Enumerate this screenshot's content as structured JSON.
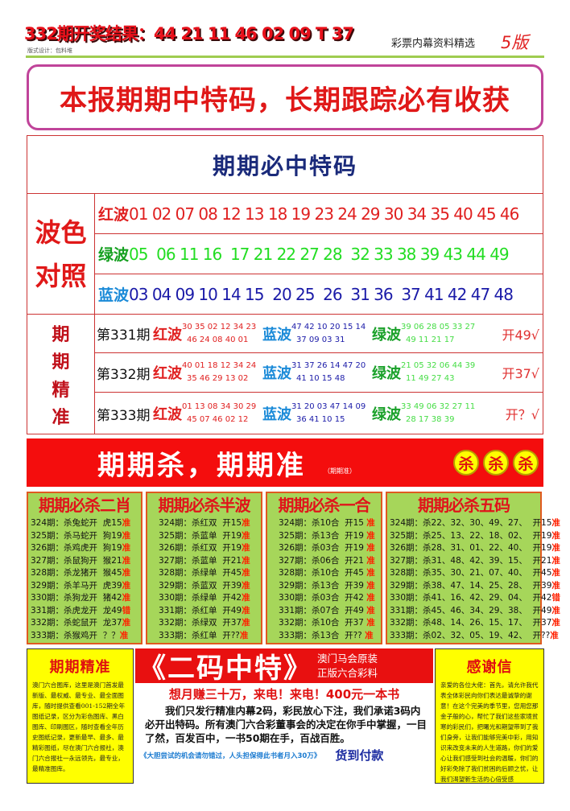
{
  "header": {
    "result": "332期开奖结果：44 21 11 46 02 09 T 37",
    "design": "版式设计：包料堆",
    "subtitle": "彩票内幕资料精选",
    "version": "5版"
  },
  "headline": "本报期期中特码，长期跟踪必有收获",
  "main_table": {
    "title": "期期必中特码",
    "wave_label": [
      "波色",
      "对照"
    ],
    "waves": [
      {
        "name": "红波",
        "numbers": "01 02 07 08 12 13 18 19 23 24 29 30 34 35 40 45 46",
        "color": "#e02020",
        "name_color": "#e02020"
      },
      {
        "name": "绿波",
        "numbers": "05  06 11 16  17 21 22 27 28  32 33 38 39 43 44 49",
        "color": "#22dd22",
        "name_color": "#15a020"
      },
      {
        "name": "蓝波",
        "numbers": "03 04 09 10 14 15  20 25  26  31 36  37 41 42 47 48",
        "color": "#1a1aa8",
        "name_color": "#1a8ad8"
      }
    ],
    "precise_label": [
      "期",
      "期",
      "精",
      "准"
    ],
    "periods": [
      {
        "period": "第331期",
        "red": [
          "30 35 02 12 34 23",
          "46 24 08 40 01"
        ],
        "blue": [
          "47 42 10 20 15 14",
          "37 09 03 31"
        ],
        "green": [
          "39 06 28 05 33 27",
          "49 11 21 17"
        ],
        "result": "开49√"
      },
      {
        "period": "第332期",
        "red": [
          "40 01 18 12 34 24",
          "35 46 29 13 02"
        ],
        "blue": [
          "31 37 26 14 47 20",
          "41 10 15 48"
        ],
        "green": [
          "21 05 32 06 44 39",
          "11 49 27 43"
        ],
        "result": "开37√"
      },
      {
        "period": "第333期",
        "red": [
          "01 13 08 34 30 29",
          "45 07 46 02 12"
        ],
        "blue": [
          "31 20 03 47 14 09",
          "36 41 10 15"
        ],
        "green": [
          "33 49 06 32 27 11",
          "28 17 38 39"
        ],
        "result": "开？√"
      }
    ],
    "labels": {
      "red": "红波",
      "blue": "蓝波",
      "green": "绿波"
    }
  },
  "banner": {
    "title": "期期杀，期期准",
    "small": "（期期准）",
    "balls": [
      "杀",
      "杀",
      "杀"
    ]
  },
  "kill_tables": [
    {
      "title": "期期必杀二肖",
      "rows": [
        {
          "p": "324期：",
          "t": "杀兔蛇开  虎15",
          "m": "准"
        },
        {
          "p": "325期：",
          "t": "杀马蛇开  狗19",
          "m": "准"
        },
        {
          "p": "326期：",
          "t": "杀鸡虎开  狗19",
          "m": "准"
        },
        {
          "p": "327期：",
          "t": "杀鼠狗开  猴21",
          "m": "准"
        },
        {
          "p": "328期：",
          "t": "杀龙猪开  猴45",
          "m": "准"
        },
        {
          "p": "329期：",
          "t": "杀羊马开  虎39",
          "m": "准"
        },
        {
          "p": "330期：",
          "t": "杀狗龙开  猪42",
          "m": "准"
        },
        {
          "p": "331期：",
          "t": "杀虎龙开  龙49",
          "m": "错"
        },
        {
          "p": "332期：",
          "t": "杀蛇鼠开  龙37",
          "m": "准"
        },
        {
          "p": "333期：",
          "t": "杀猴鸡开  ？？",
          "m": "准"
        }
      ]
    },
    {
      "title": "期期必杀半波",
      "rows": [
        {
          "p": "324期：",
          "t": "杀红双  开15",
          "m": "准"
        },
        {
          "p": "325期：",
          "t": "杀蓝单  开19",
          "m": "准"
        },
        {
          "p": "326期：",
          "t": "杀红双  开19",
          "m": "准"
        },
        {
          "p": "327期：",
          "t": "杀蓝单  开21",
          "m": "准"
        },
        {
          "p": "328期：",
          "t": "杀绿单  开45",
          "m": "准"
        },
        {
          "p": "329期：",
          "t": "杀蓝双  开39",
          "m": "准"
        },
        {
          "p": "330期：",
          "t": "杀绿单  开42",
          "m": "准"
        },
        {
          "p": "331期：",
          "t": "杀红单  开49",
          "m": "准"
        },
        {
          "p": "332期：",
          "t": "杀绿双  开37",
          "m": "准"
        },
        {
          "p": "333期：",
          "t": "杀红单  开??",
          "m": "准"
        }
      ]
    },
    {
      "title": "期期必杀一合",
      "rows": [
        {
          "p": "324期：",
          "t": "杀10合  开15 ",
          "m": "准"
        },
        {
          "p": "325期：",
          "t": "杀13合  开19 ",
          "m": "准"
        },
        {
          "p": "326期：",
          "t": "杀03合  开19 ",
          "m": "准"
        },
        {
          "p": "327期：",
          "t": "杀06合  开21 ",
          "m": "准"
        },
        {
          "p": "328期：",
          "t": "杀10合  开45 ",
          "m": "准"
        },
        {
          "p": "329期：",
          "t": "杀13合  开39 ",
          "m": "准"
        },
        {
          "p": "330期：",
          "t": "杀03合  开42 ",
          "m": "准"
        },
        {
          "p": "331期：",
          "t": "杀07合  开49 ",
          "m": "准"
        },
        {
          "p": "332期：",
          "t": "杀10合  开37 ",
          "m": "准"
        },
        {
          "p": "333期：",
          "t": "杀13合  开?? ",
          "m": "准"
        }
      ]
    },
    {
      "title": "期期必杀五码",
      "rows": [
        {
          "p": "324期：",
          "t": "杀22、32、30、49、27、  开15",
          "m": "准"
        },
        {
          "p": "325期：",
          "t": "杀25、13、22、18、02、  开19",
          "m": "准"
        },
        {
          "p": "326期：",
          "t": "杀28、31、01、22、40、  开19",
          "m": "准"
        },
        {
          "p": "327期：",
          "t": "杀31、48、42、39、15、  开21",
          "m": "准"
        },
        {
          "p": "328期：",
          "t": "杀35、30、21、07、40、  开45",
          "m": "准"
        },
        {
          "p": "329期：",
          "t": "杀38、47、14、25、28、  开39",
          "m": "准"
        },
        {
          "p": "330期：",
          "t": "杀41、16、42、29、04、  开42",
          "m": "错"
        },
        {
          "p": "331期：",
          "t": "杀45、46、34、29、38、  开49",
          "m": "准"
        },
        {
          "p": "332期：",
          "t": "杀48、14、26、15、17、  开37",
          "m": "准"
        },
        {
          "p": "333期：",
          "t": "杀02、32、05、19、42、  开??",
          "m": "准"
        }
      ]
    }
  ],
  "left_box": {
    "title": "期期精准",
    "text": "澳门六合图库，这里是澳门首发最新版、最权威、最专业、最全面图库，随时提供查看001-152期全年图纸记录，区分为彩色图库、黑白图库、印刷图区，随时查看全年历史图纸记录，更新最早、最多、最精彩图纸，尽在澳门六合报社，澳门六合报社一永远领先，最专业，最精准图库。"
  },
  "middle_box": {
    "big": "《二码中特》",
    "side": [
      "澳门马会原装",
      "正版六合彩料"
    ],
    "slogan": "想月赚三十万，来电！来电！400元一本书",
    "body": "我们只发行精准内幕2码，彩民放心下注，我们承诺3码内必开出特码。所有澳门六合彩董事会的决定在你手中掌握，一目了然，百发百中，一书50期在手，百战百胜。",
    "note": "《大胆尝试的机会请勿错过，人头担保得此书者月入30万》",
    "pay": "货到付款"
  },
  "right_box": {
    "title": "感谢信",
    "text": "亲爱的各位大佬：首先，请允许我代表全体彩民向你们表达最诚挚的谢意！在这个完美的季节里，您用您那金子般的心，帮忙了我们这些家境贫寒的彩民们，把曙光和期望带到了我们身旁，让我们能够完美中彩，用知识来改变未来的人生道路，你们的爱心让我们感受到社会的温暖，你们的好彩免除了我们贫困的后顾之忧，让我们渴望新生活的心倍受感"
  }
}
